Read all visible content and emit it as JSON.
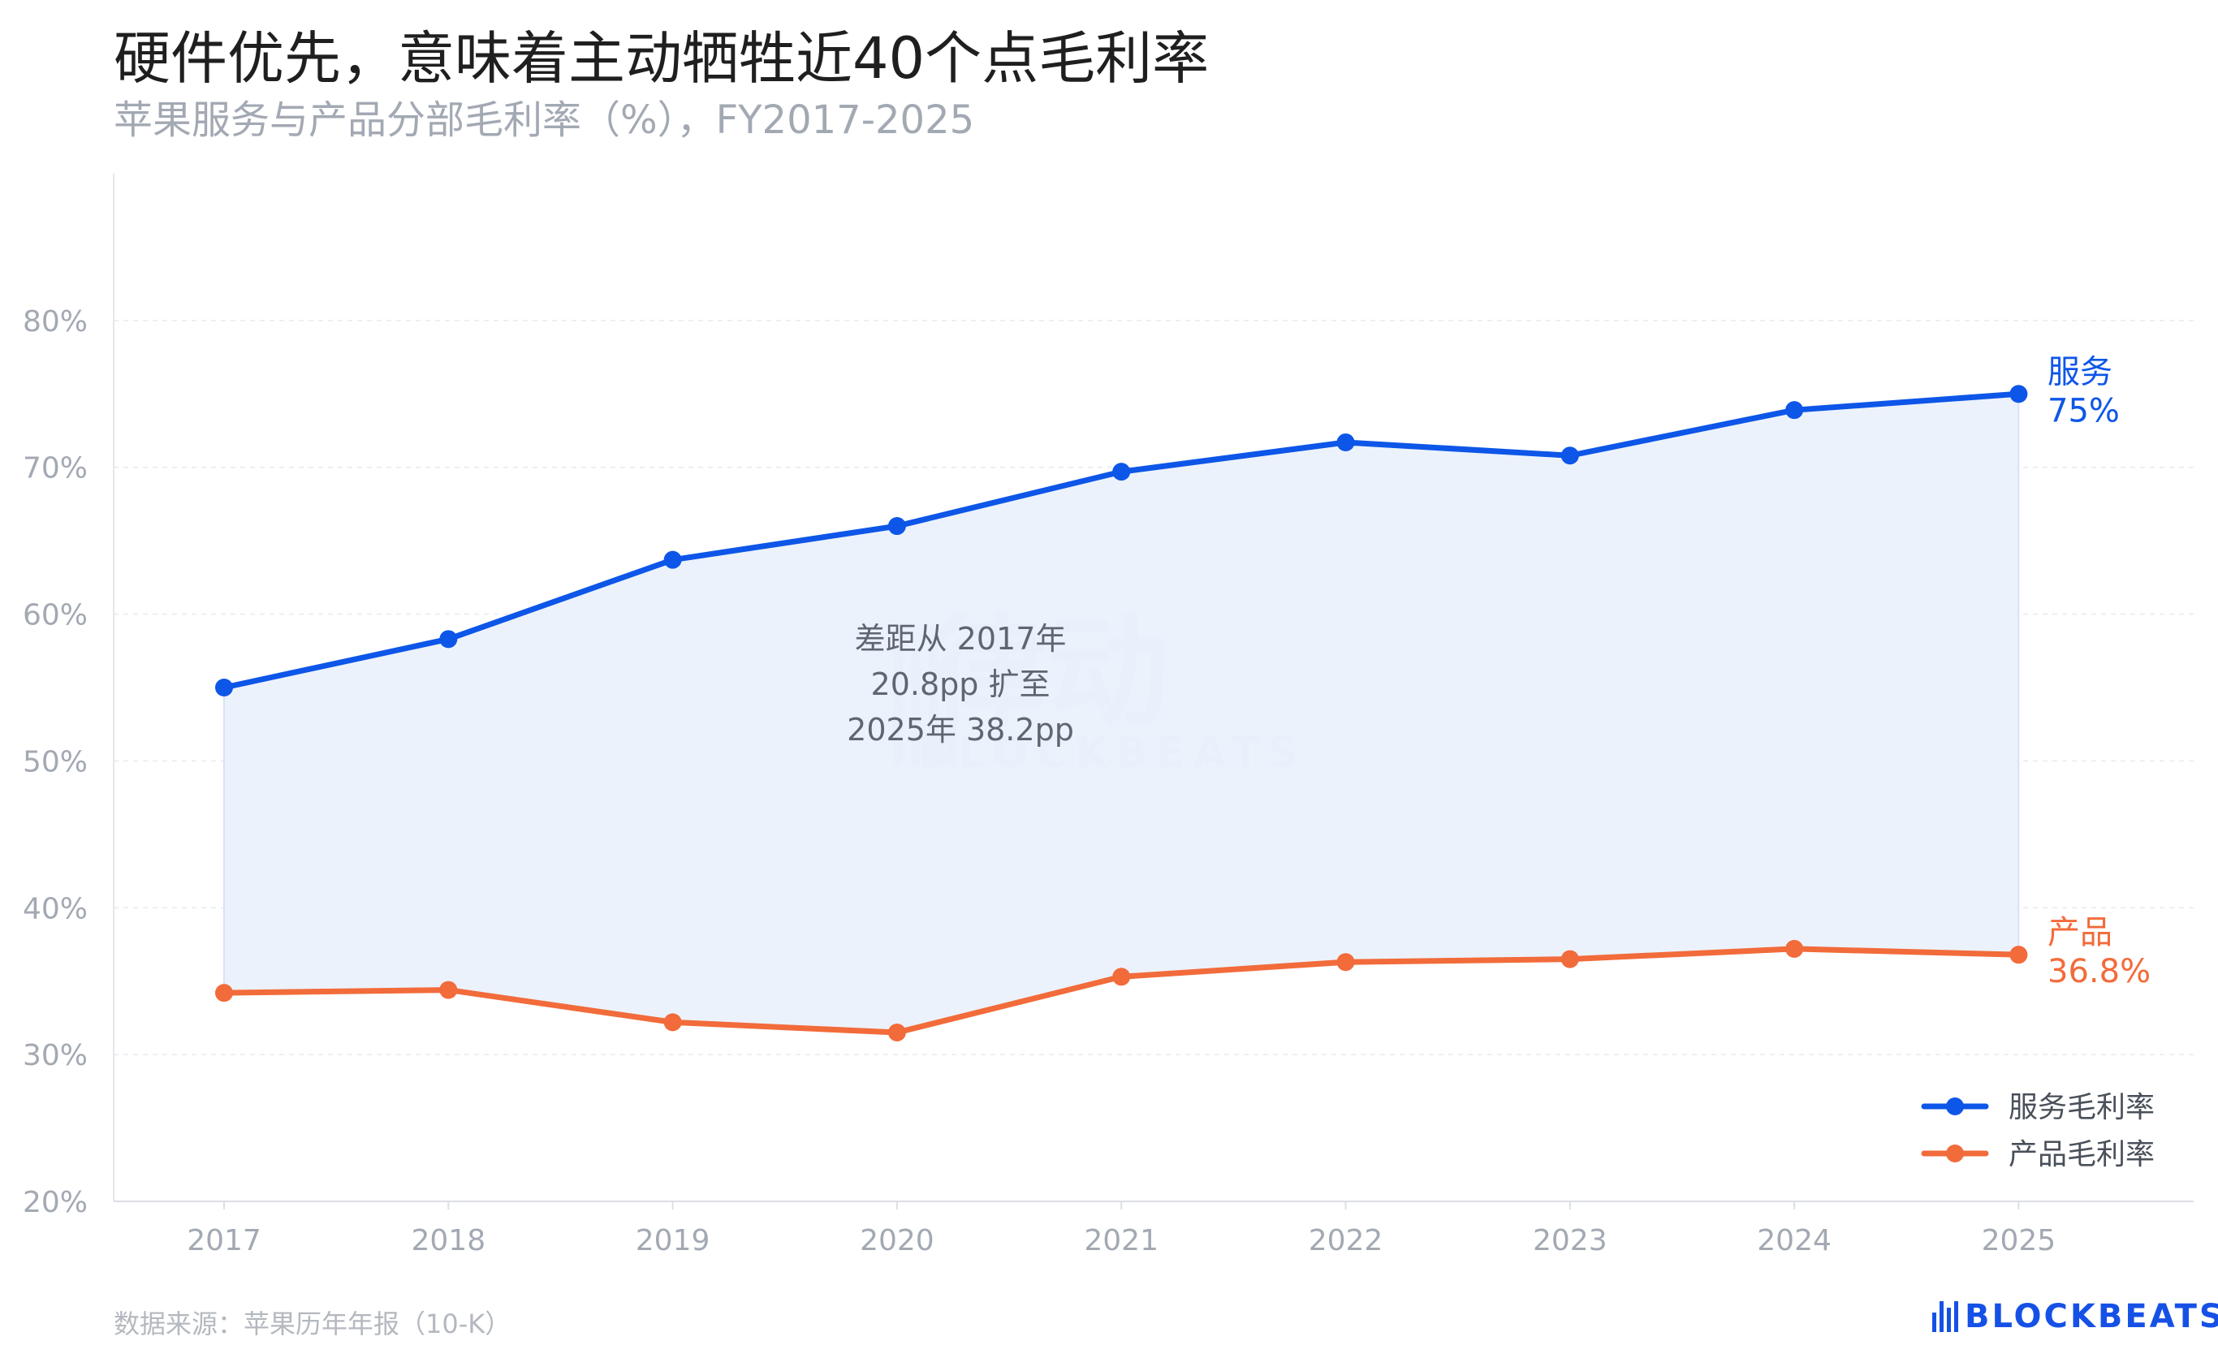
{
  "title": "硬件优先，意味着主动牺牲近40个点毛利率",
  "subtitle": "苹果服务与产品分部毛利率（%），FY2017-2025",
  "source": "数据来源：苹果历年年报（10-K）",
  "brand": "BLOCKBEATS",
  "watermark": {
    "cn": "律动",
    "en": "BLOCKBEATS"
  },
  "annotation": {
    "lines": [
      "差距从 2017年",
      "20.8pp 扩至",
      "2025年 38.2pp"
    ]
  },
  "end_labels": {
    "services": {
      "name": "服务",
      "value": "75%"
    },
    "products": {
      "name": "产品",
      "value": "36.8%"
    }
  },
  "legend": [
    "服务毛利率",
    "产品毛利率"
  ],
  "colors": {
    "services": "#0d56e8",
    "products": "#f26b3a",
    "fill": "#e9f0fc",
    "grid": "#eceef2",
    "axis_text": "#a3a9b3"
  },
  "chart_data": {
    "type": "line",
    "x": [
      "2017",
      "2018",
      "2019",
      "2020",
      "2021",
      "2022",
      "2023",
      "2024",
      "2025"
    ],
    "series": [
      {
        "name": "服务毛利率",
        "values": [
          55.0,
          58.3,
          63.7,
          66.0,
          69.7,
          71.7,
          70.8,
          73.9,
          75.0
        ]
      },
      {
        "name": "产品毛利率",
        "values": [
          34.2,
          34.4,
          32.2,
          31.5,
          35.3,
          36.3,
          36.5,
          37.2,
          36.8
        ]
      }
    ],
    "yticks": [
      "20%",
      "30%",
      "40%",
      "50%",
      "60%",
      "70%",
      "80%"
    ],
    "ylim": [
      20,
      90
    ],
    "grid": true,
    "shaded_gap": true,
    "legend_position": "bottom-right"
  }
}
